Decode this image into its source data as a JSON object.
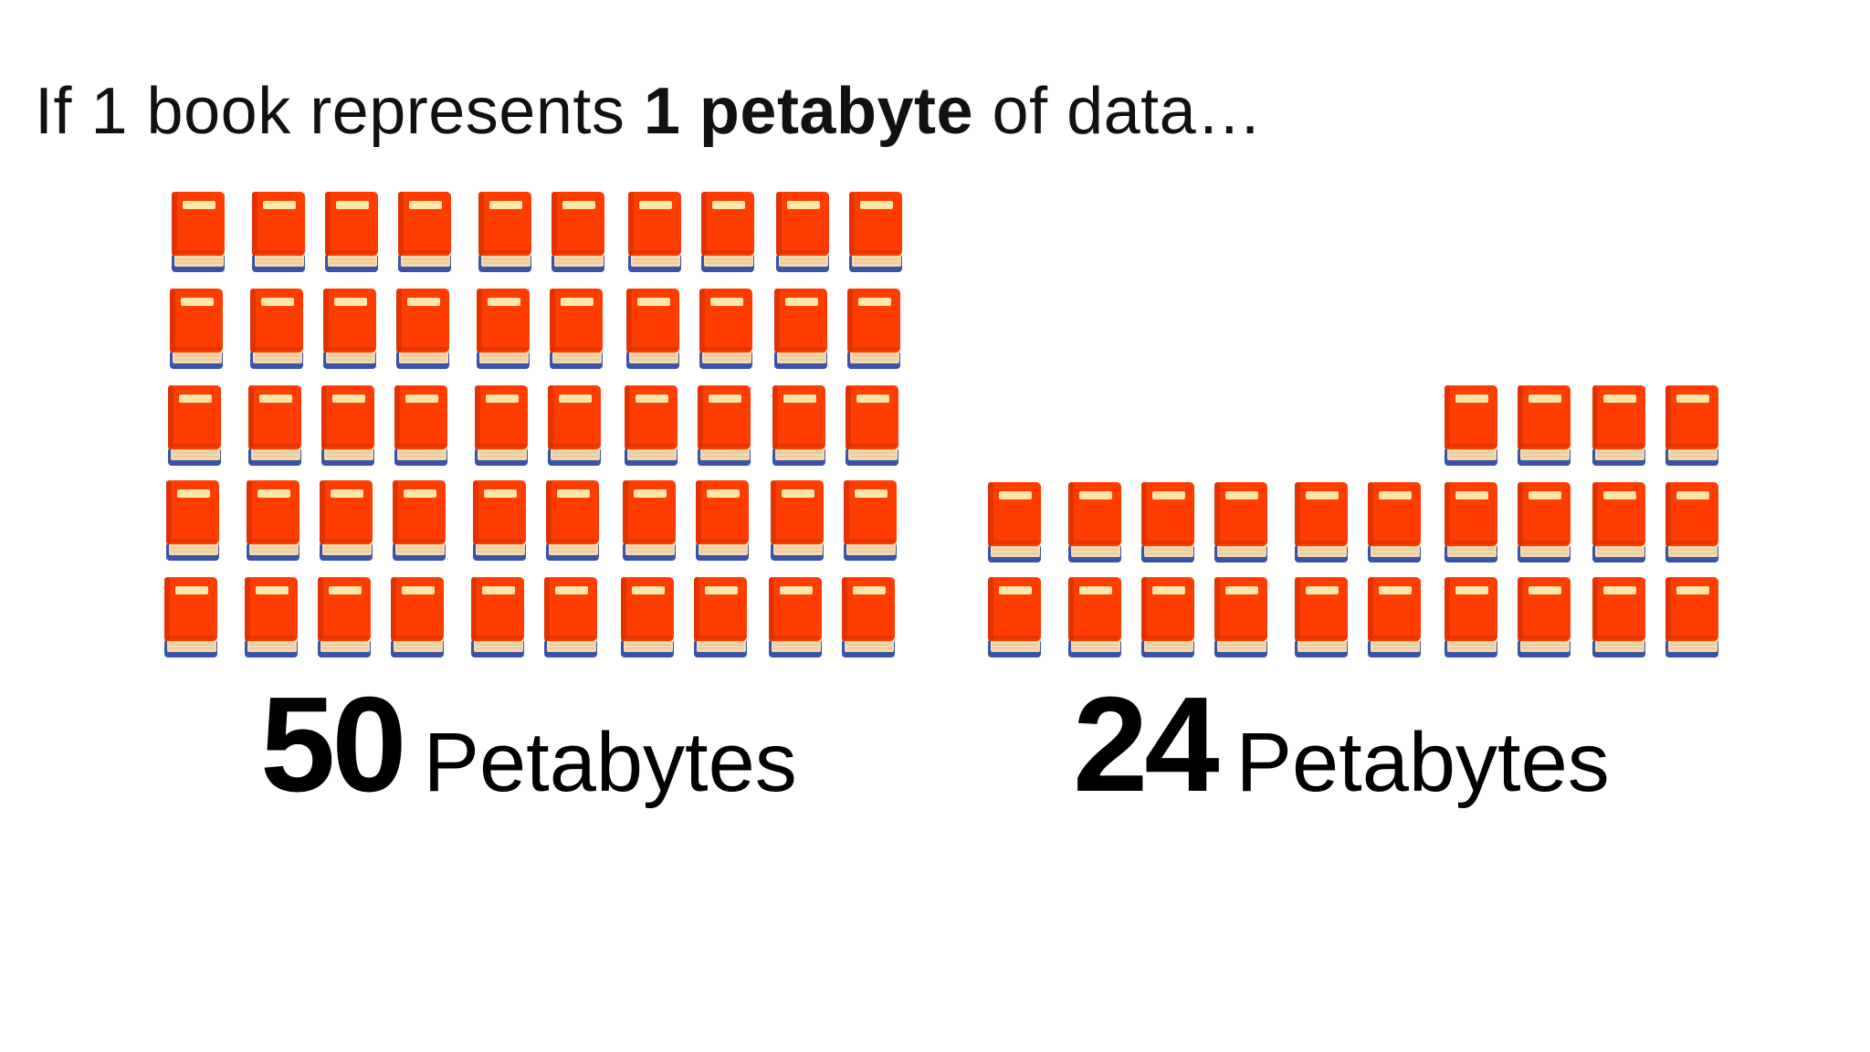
{
  "headline": {
    "prefix": "If 1 book represents ",
    "bold": "1 petabyte",
    "suffix": " of data…"
  },
  "book_icon": {
    "name": "book-icon",
    "cover_color": "#ff3d00",
    "label_color": "#fde7a8",
    "pages_color": "#f4d9b0",
    "spine_color": "#3a52a8"
  },
  "groups": [
    {
      "count": 50,
      "number": "50",
      "unit": "Petabytes"
    },
    {
      "count": 24,
      "number": "24",
      "unit": "Petabytes"
    }
  ]
}
